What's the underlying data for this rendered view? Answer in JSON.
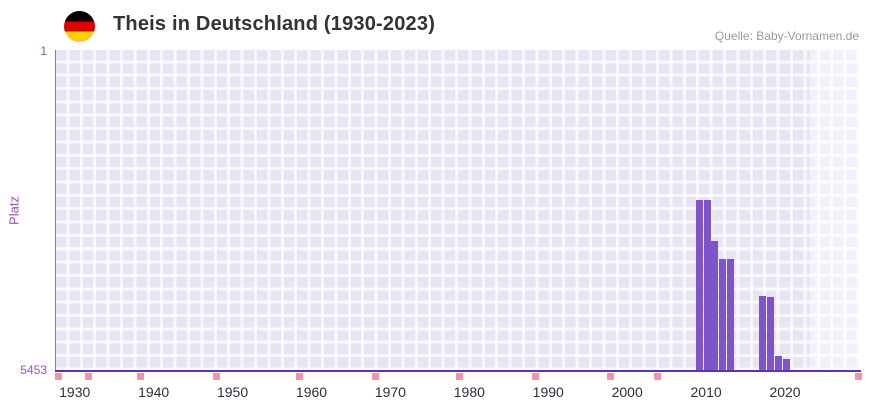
{
  "header": {
    "title": "Theis in Deutschland (1930-2023)",
    "source": "Quelle: Baby-Vornamen.de"
  },
  "chart_data": {
    "type": "bar",
    "title": "Theis in Deutschland (1930-2023)",
    "xlabel": "",
    "ylabel": "Platz",
    "y_axis": {
      "min": 1,
      "max": 5453,
      "inverted": true,
      "tick_labels": [
        "1",
        "5453"
      ]
    },
    "x_axis": {
      "min": 1927.5,
      "max": 2029.5,
      "tick_years": [
        1930,
        1940,
        1950,
        1960,
        1970,
        1980,
        1990,
        2000,
        2010,
        2020
      ]
    },
    "series": [
      {
        "name": "Platz",
        "color": "#7d55c8",
        "points": [
          {
            "year": 2009,
            "rank": 2560
          },
          {
            "year": 2010,
            "rank": 2560
          },
          {
            "year": 2011,
            "rank": 3250
          },
          {
            "year": 2012,
            "rank": 3560
          },
          {
            "year": 2013,
            "rank": 3570
          },
          {
            "year": 2017,
            "rank": 4190
          },
          {
            "year": 2018,
            "rank": 4210
          },
          {
            "year": 2019,
            "rank": 5210
          },
          {
            "year": 2020,
            "rank": 5270
          }
        ]
      }
    ],
    "baseline_markers": {
      "color": "#f293a6",
      "positions_pct": [
        0.004,
        0.041,
        0.106,
        0.2,
        0.303,
        0.398,
        0.502,
        0.596,
        0.69,
        0.748,
        0.998
      ]
    },
    "plot_band": {
      "from_year": 2023,
      "to_year": 2029.5
    },
    "grid": true,
    "legend": false
  },
  "colors": {
    "bar": "#7d55c8",
    "axis_line": "#5b35ae",
    "axis_text": "#a050b4",
    "x_label_text": "#2e2e3e",
    "plot_bg": "#e8e4f4",
    "marker": "#f293a6",
    "flag_black": "#000000",
    "flag_red": "#dd0000",
    "flag_gold": "#ffce00"
  }
}
